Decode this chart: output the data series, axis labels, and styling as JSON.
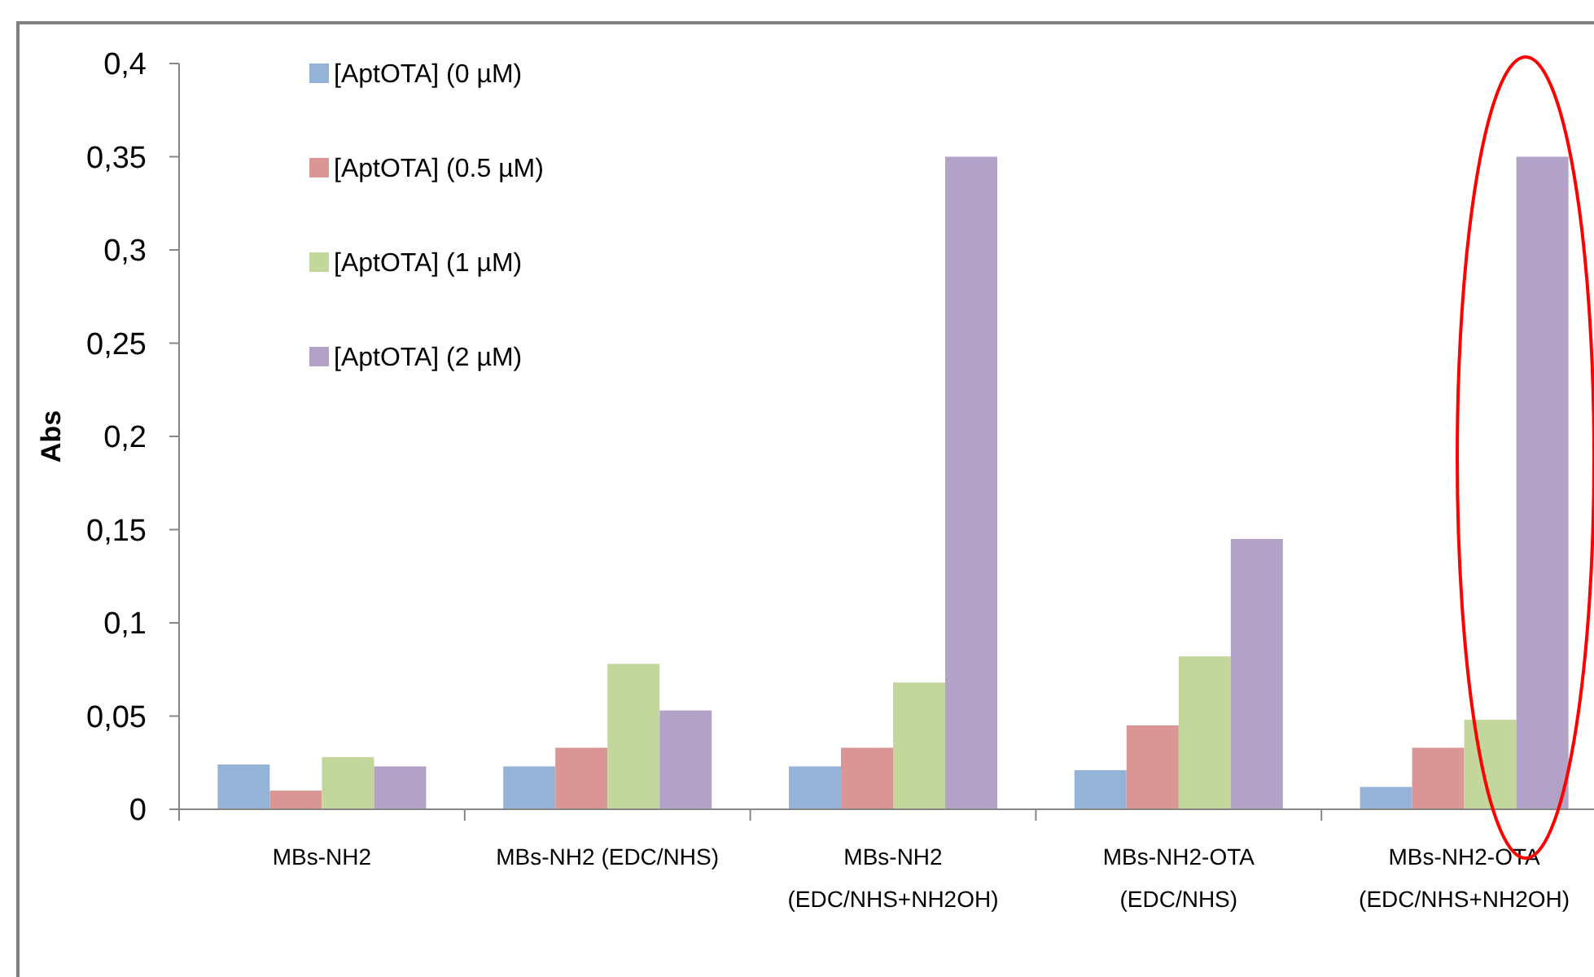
{
  "chart_data": {
    "type": "bar",
    "ylabel": "Abs",
    "categories": [
      "MBs-NH2",
      "MBs-NH2 (EDC/NHS)",
      "MBs-NH2\n(EDC/NHS+NH2OH)",
      "MBs-NH2-OTA\n(EDC/NHS)",
      "MBs-NH2-OTA\n(EDC/NHS+NH2OH)"
    ],
    "series": [
      {
        "name": "[AptOTA] (0 µM)",
        "color": "#95b3d7",
        "values": [
          0.024,
          0.023,
          0.023,
          0.021,
          0.012
        ]
      },
      {
        "name": "[AptOTA] (0.5 µM)",
        "color": "#d99694",
        "values": [
          0.01,
          0.033,
          0.033,
          0.045,
          0.033
        ]
      },
      {
        "name": "[AptOTA] (1 µM)",
        "color": "#c3d69b",
        "values": [
          0.028,
          0.078,
          0.068,
          0.082,
          0.048
        ]
      },
      {
        "name": "[AptOTA] (2 µM)",
        "color": "#b2a2c7",
        "values": [
          0.023,
          0.053,
          0.35,
          0.145,
          0.35
        ]
      }
    ],
    "ylim": [
      0,
      0.4
    ],
    "yticks": [
      {
        "value": 0,
        "label": "0"
      },
      {
        "value": 0.05,
        "label": "0,05"
      },
      {
        "value": 0.1,
        "label": "0,1"
      },
      {
        "value": 0.15,
        "label": "0,15"
      },
      {
        "value": 0.2,
        "label": "0,2"
      },
      {
        "value": 0.25,
        "label": "0,25"
      },
      {
        "value": 0.3,
        "label": "0,3"
      },
      {
        "value": 0.35,
        "label": "0,35"
      },
      {
        "value": 0.4,
        "label": "0,4"
      }
    ],
    "grid": false,
    "legend": "top left"
  }
}
